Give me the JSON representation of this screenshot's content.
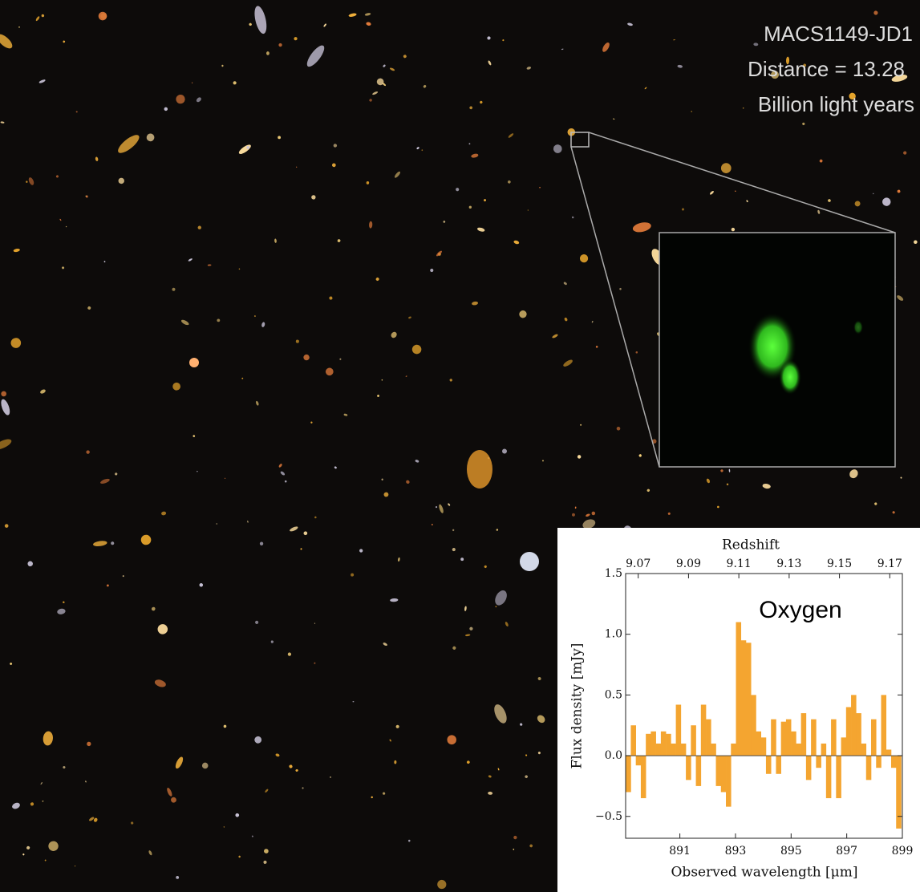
{
  "annotations": {
    "object": "MACS1149-JD1",
    "distance": "Distance = 13.28",
    "unit": "Billion light years",
    "line": "Oxygen"
  },
  "chart_data": {
    "type": "bar",
    "title": "Redshift",
    "x_label": "Observed wavelength [μm]",
    "y_label": "Flux density [mJy]",
    "color": "#f4a530",
    "x": [
      889.15,
      889.33,
      889.51,
      889.69,
      889.87,
      890.05,
      890.23,
      890.41,
      890.59,
      890.77,
      890.95,
      891.13,
      891.31,
      891.49,
      891.67,
      891.85,
      892.03,
      892.21,
      892.39,
      892.57,
      892.75,
      892.93,
      893.11,
      893.29,
      893.47,
      893.65,
      893.83,
      894.01,
      894.19,
      894.37,
      894.55,
      894.73,
      894.91,
      895.09,
      895.27,
      895.45,
      895.63,
      895.81,
      895.99,
      896.17,
      896.35,
      896.53,
      896.71,
      896.89,
      897.07,
      897.25,
      897.43,
      897.61,
      897.79,
      897.97,
      898.15,
      898.33,
      898.51,
      898.69,
      898.87
    ],
    "values": [
      -0.3,
      0.25,
      -0.08,
      -0.35,
      0.18,
      0.2,
      0.1,
      0.2,
      0.18,
      0.1,
      0.42,
      0.1,
      -0.2,
      0.25,
      -0.25,
      0.42,
      0.3,
      0.1,
      -0.25,
      -0.3,
      -0.42,
      0.1,
      1.1,
      0.95,
      0.93,
      0.5,
      0.2,
      0.15,
      -0.15,
      0.3,
      -0.15,
      0.28,
      0.3,
      0.2,
      0.1,
      0.35,
      -0.2,
      0.3,
      -0.1,
      0.1,
      -0.35,
      0.3,
      -0.35,
      0.15,
      0.4,
      0.5,
      0.35,
      0.1,
      -0.2,
      0.3,
      -0.1,
      0.5,
      0.05,
      -0.1,
      -0.6
    ],
    "xlim": [
      889.05,
      899
    ],
    "xticks": [
      891,
      893,
      895,
      897,
      899
    ],
    "x2lim": [
      9.065,
      9.175
    ],
    "x2ticks": [
      9.07,
      9.09,
      9.11,
      9.13,
      9.15,
      9.17
    ],
    "ylim": [
      -0.68,
      1.5
    ],
    "yticks": [
      {
        "value": -0.5,
        "label": "−0.5"
      },
      {
        "value": 0,
        "label": "0.0"
      },
      0.5,
      {
        "value": 1,
        "label": "1.0"
      },
      1.5
    ],
    "grid": false
  }
}
